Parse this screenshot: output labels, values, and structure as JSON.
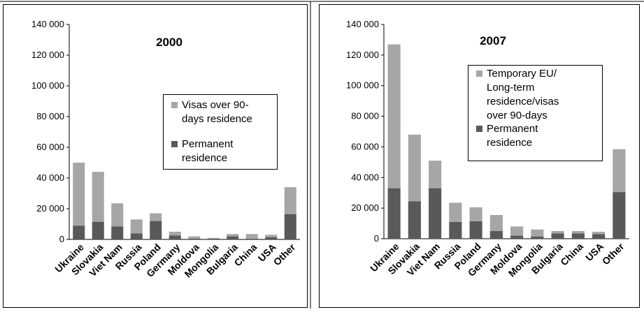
{
  "chart_data": [
    {
      "type": "bar",
      "stacked": true,
      "title": "2000",
      "categories": [
        "Ukraine",
        "Slovakia",
        "Viet Nam",
        "Russia",
        "Poland",
        "Germany",
        "Moldova",
        "Mongolia",
        "Bulgaria",
        "China",
        "USA",
        "Other"
      ],
      "series": [
        {
          "name": "Permanent residence",
          "color": "#595959",
          "values": [
            9000,
            11500,
            8500,
            4000,
            12000,
            2500,
            500,
            500,
            2000,
            500,
            1500,
            16500
          ]
        },
        {
          "name": "Visas over 90-days residence",
          "color": "#a6a6a6",
          "values": [
            41000,
            32500,
            15000,
            9000,
            5000,
            2500,
            1500,
            500,
            1500,
            3000,
            1500,
            17500
          ]
        }
      ],
      "ylim": [
        0,
        140000
      ],
      "yticks": [
        "0",
        "20 000",
        "40 000",
        "60 000",
        "80 000",
        "100 000",
        "120 000",
        "140 000"
      ],
      "legend_position": "right",
      "grid": false
    },
    {
      "type": "bar",
      "stacked": true,
      "title": "2007",
      "categories": [
        "Ukraine",
        "Slovakia",
        "Viet Nam",
        "Russia",
        "Poland",
        "Germany",
        "Moldova",
        "Mongolia",
        "Bulgaria",
        "China",
        "USA",
        "Other"
      ],
      "series": [
        {
          "name": "Permanent residence",
          "color": "#595959",
          "values": [
            33000,
            24500,
            33000,
            11000,
            11500,
            5000,
            2000,
            1500,
            3500,
            3500,
            3000,
            30500
          ]
        },
        {
          "name": "Temporary EU/ Long-term residence/visas over 90-days",
          "color": "#a6a6a6",
          "values": [
            94000,
            43500,
            18000,
            12500,
            9000,
            10500,
            6000,
            4500,
            1500,
            1500,
            1500,
            28000
          ]
        }
      ],
      "ylim": [
        0,
        140000
      ],
      "yticks": [
        "0",
        "20 000",
        "40 000",
        "60 000",
        "80 000",
        "100 000",
        "120 000",
        "140 000"
      ],
      "legend_position": "top-right",
      "grid": false
    }
  ],
  "legends": [
    {
      "top_lines": [
        "Visas over 90-",
        "days residence"
      ],
      "bottom_lines": [
        "Permanent",
        "residence"
      ]
    },
    {
      "top_lines": [
        "Temporary EU/",
        "Long-term",
        "residence/visas",
        "over 90-days"
      ],
      "bottom_lines": [
        "Permanent",
        "residence"
      ]
    }
  ]
}
